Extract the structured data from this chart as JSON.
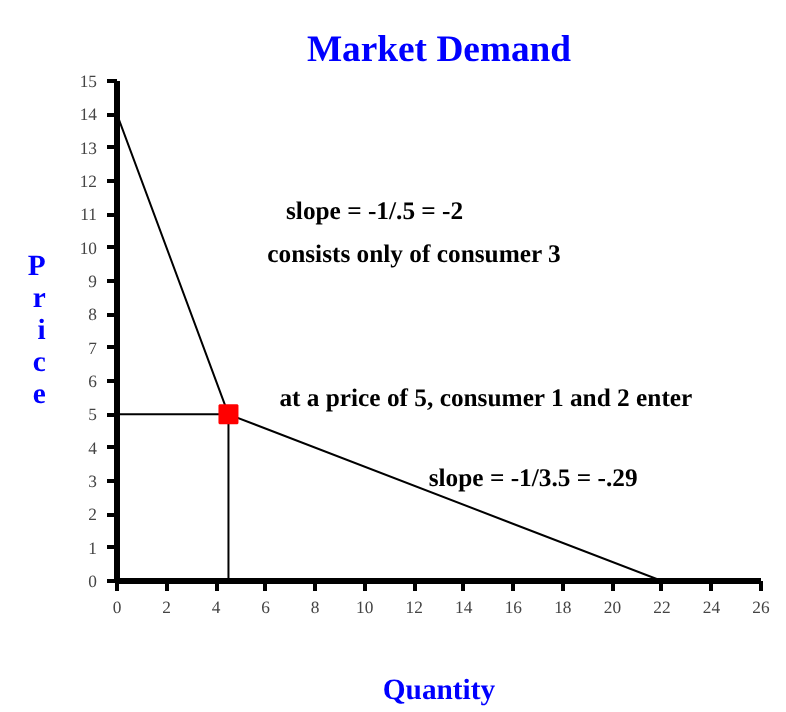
{
  "chart_data": {
    "type": "line",
    "title": "Market Demand",
    "xlabel": "Quantity",
    "ylabel": "Price",
    "xlim": [
      0,
      26
    ],
    "xticks": [
      0,
      2,
      4,
      6,
      8,
      10,
      12,
      14,
      16,
      18,
      20,
      22,
      24,
      26
    ],
    "ylim": [
      0,
      15
    ],
    "yticks": [
      0,
      1,
      2,
      3,
      4,
      5,
      6,
      7,
      8,
      9,
      10,
      11,
      12,
      13,
      14,
      15
    ],
    "grid": false,
    "series": [
      {
        "color": "#000000",
        "x": [
          0,
          4.5,
          22
        ],
        "values": [
          14,
          5,
          0
        ]
      },
      {
        "color": "#000000",
        "x": [
          4.5,
          4.5
        ],
        "values": [
          0,
          5
        ]
      },
      {
        "color": "#000000",
        "x": [
          0,
          4.5
        ],
        "values": [
          5,
          5
        ]
      },
      {
        "type": "scatter",
        "color": "#ff0000",
        "marker": "square",
        "x": [
          4.5
        ],
        "values": [
          5
        ]
      }
    ],
    "annotations": [
      "slope = -1/.5 = -2",
      "consists only of consumer 3",
      "at a price of 5, consumer 1 and 2 enter",
      "slope = -1/3.5 = -.29"
    ]
  }
}
